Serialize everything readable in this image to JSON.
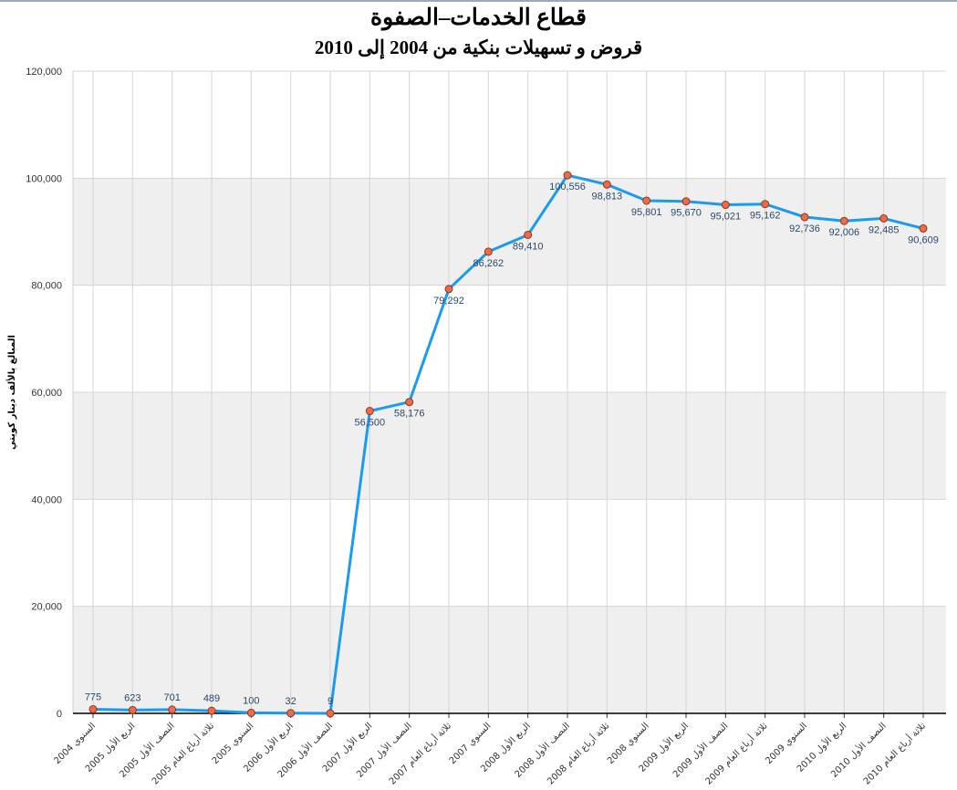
{
  "chart_data": {
    "type": "line",
    "title": "قطاع الخدمات–الصفوة",
    "subtitle": "قروض و تسهيلات بنكية من 2004 إلى 2010",
    "ylabel": "المبالغ بالألف دينار كويتي",
    "xlabel": "",
    "ylim": [
      0,
      120000
    ],
    "yticks": [
      0,
      20000,
      40000,
      60000,
      80000,
      100000,
      120000
    ],
    "ytick_labels": [
      "0",
      "20,000",
      "40,000",
      "60,000",
      "80,000",
      "100,000",
      "120,000"
    ],
    "grid": true,
    "categories": [
      "السنوي 2004",
      "الربع الأول 2005",
      "النصف الأول 2005",
      "ثلاثة أرباع العام 2005",
      "السنوي 2005",
      "الربع الأول 2006",
      "النصف الأول 2006",
      "الربع الأول 2007",
      "النصف الأول 2007",
      "ثلاثة أرباع العام 2007",
      "السنوي 2007",
      "الربع الأول 2008",
      "النصف الأول 2008",
      "ثلاثة أرباع العام 2008",
      "السنوي 2008",
      "الربع الأول 2009",
      "النصف الأول 2009",
      "ثلاثة أرباع العام 2009",
      "السنوي 2009",
      "الربع الأول 2010",
      "النصف الأول 2010",
      "ثلاثة أرباع العام 2010"
    ],
    "series": [
      {
        "name": "",
        "values": [
          775,
          623,
          701,
          489,
          100,
          32,
          9,
          56500,
          58176,
          79292,
          86262,
          89410,
          100556,
          98813,
          95801,
          95670,
          95021,
          95162,
          92736,
          92006,
          92485,
          90609
        ],
        "labels": [
          "775",
          "623",
          "701",
          "489",
          "100",
          "32",
          "9",
          "56,500",
          "58,176",
          "79,292",
          "86,262",
          "89,410",
          "100,556",
          "98,813",
          "95,801",
          "95,670",
          "95,021",
          "95,162",
          "92,736",
          "92,006",
          "92,485",
          "90,609"
        ]
      }
    ],
    "colors": {
      "line": "#1a9af0",
      "marker": "#f06a45",
      "label": "#2a4a6a",
      "band": "#efefef"
    }
  }
}
